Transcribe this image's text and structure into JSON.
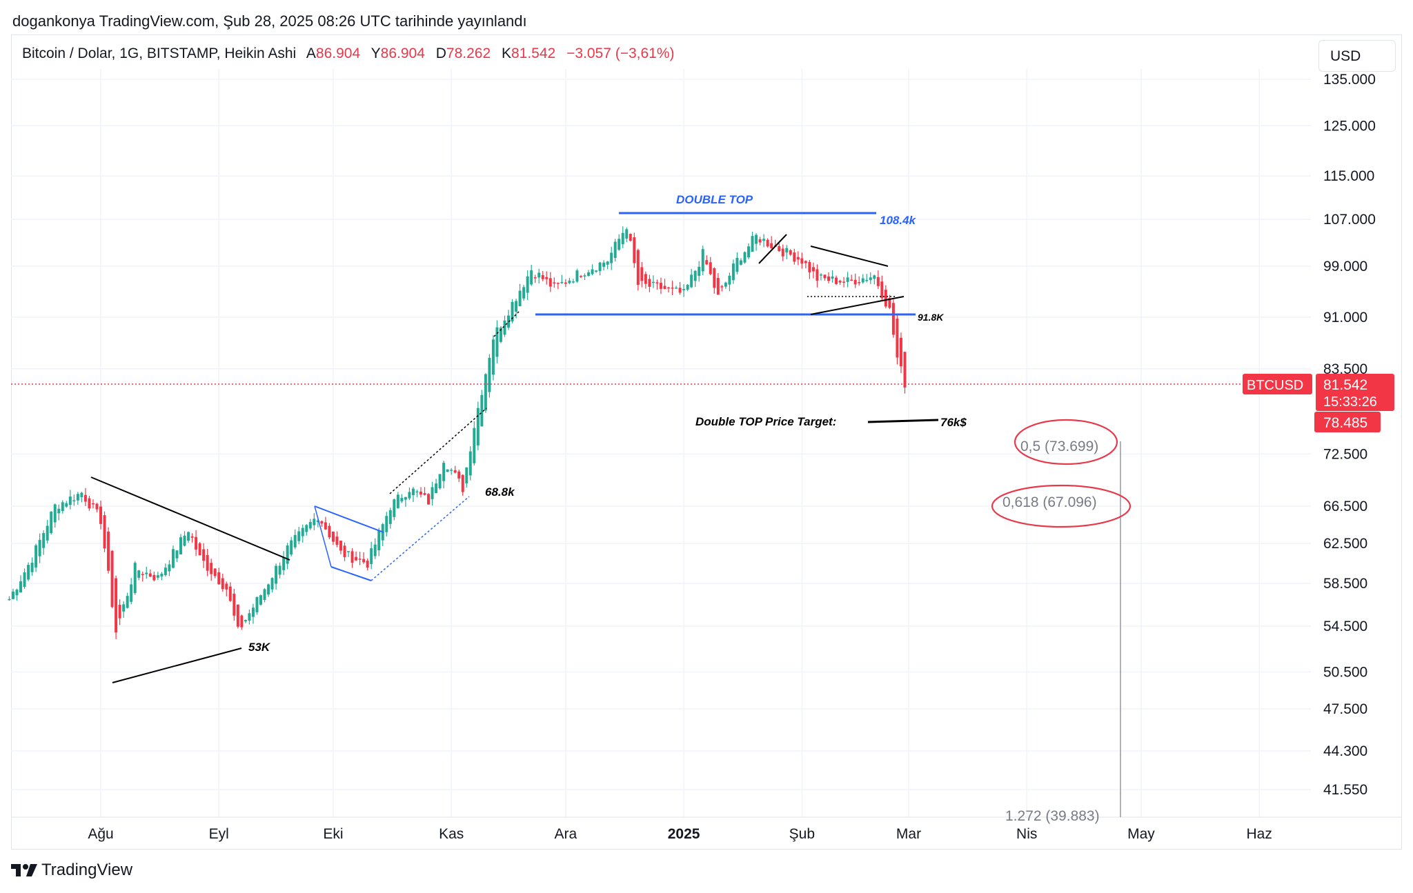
{
  "header": {
    "publish_line": "dogankonya TradingView.com, Şub 28, 2025 08:26 UTC tarihinde yayınlandı"
  },
  "legend": {
    "symbol": "Bitcoin / Dolar, 1G, BITSTAMP, Heikin Ashi",
    "open_label": "A",
    "open_value": "86.904",
    "high_label": "Y",
    "high_value": "86.904",
    "low_label": "D",
    "low_value": "78.262",
    "close_label": "K",
    "close_value": "81.542",
    "change": "−3.057 (−3,61%)"
  },
  "currency_button": "USD",
  "price_badge": {
    "symbol": "BTCUSD",
    "price": "81.542",
    "countdown": "15:33:26",
    "low_price": "78.485"
  },
  "footer": {
    "brand": "TradingView",
    "logo_icon": "tradingview-logo-icon"
  },
  "colors": {
    "up": "#22ab94",
    "down": "#f23645",
    "blue_line": "#2962ff",
    "badge": "#f23645"
  },
  "chart_data": {
    "type": "candlestick",
    "subtype": "Heikin Ashi",
    "y_scale": "log",
    "ylim": [
      39500,
      140000
    ],
    "y_ticks": [
      "135.000",
      "125.000",
      "115.000",
      "107.000",
      "99.000",
      "91.000",
      "83.500",
      "72.500",
      "66.500",
      "62.500",
      "58.500",
      "54.500",
      "50.500",
      "47.500",
      "44.300",
      "41.550"
    ],
    "y_tick_values": [
      135000,
      125000,
      115000,
      107000,
      99000,
      91000,
      83500,
      72500,
      66500,
      62500,
      58500,
      54500,
      50500,
      47500,
      44300,
      41550
    ],
    "x_ticks": [
      "Ağu",
      "Eyl",
      "Eki",
      "Kas",
      "Ara",
      "2025",
      "Şub",
      "Mar",
      "Nis",
      "May",
      "Haz"
    ],
    "x_tick_dates": [
      "2024-08-01",
      "2024-09-01",
      "2024-10-01",
      "2024-11-01",
      "2024-12-01",
      "2025-01-01",
      "2025-02-01",
      "2025-03-01",
      "2025-04-01",
      "2025-05-01",
      "2025-06-01"
    ],
    "x_range": [
      "2024-07-08",
      "2025-06-30"
    ],
    "last_price": 81542,
    "approx_daily_close": [
      [
        "2024-07-08",
        57000
      ],
      [
        "2024-07-14",
        61000
      ],
      [
        "2024-07-20",
        66500
      ],
      [
        "2024-07-27",
        68000
      ],
      [
        "2024-08-01",
        65000
      ],
      [
        "2024-08-05",
        54000
      ],
      [
        "2024-08-10",
        60000
      ],
      [
        "2024-08-16",
        59000
      ],
      [
        "2024-08-24",
        64000
      ],
      [
        "2024-08-27",
        61000
      ],
      [
        "2024-09-03",
        58000
      ],
      [
        "2024-09-06",
        54000
      ],
      [
        "2024-09-13",
        58000
      ],
      [
        "2024-09-19",
        62000
      ],
      [
        "2024-09-27",
        65500
      ],
      [
        "2024-10-03",
        61500
      ],
      [
        "2024-10-10",
        60500
      ],
      [
        "2024-10-16",
        66500
      ],
      [
        "2024-10-21",
        68500
      ],
      [
        "2024-10-26",
        67000
      ],
      [
        "2024-10-30",
        72000
      ],
      [
        "2024-11-04",
        68500
      ],
      [
        "2024-11-07",
        76000
      ],
      [
        "2024-11-12",
        88000
      ],
      [
        "2024-11-22",
        98500
      ],
      [
        "2024-11-28",
        95500
      ],
      [
        "2024-12-05",
        98000
      ],
      [
        "2024-12-12",
        100000
      ],
      [
        "2024-12-17",
        106000
      ],
      [
        "2024-12-20",
        96000
      ],
      [
        "2024-12-26",
        95500
      ],
      [
        "2025-01-01",
        94500
      ],
      [
        "2025-01-06",
        101000
      ],
      [
        "2025-01-10",
        94000
      ],
      [
        "2025-01-15",
        100000
      ],
      [
        "2025-01-20",
        104000
      ],
      [
        "2025-01-27",
        101500
      ],
      [
        "2025-02-01",
        100000
      ],
      [
        "2025-02-05",
        97000
      ],
      [
        "2025-02-13",
        96500
      ],
      [
        "2025-02-20",
        97500
      ],
      [
        "2025-02-24",
        92000
      ],
      [
        "2025-02-26",
        85000
      ],
      [
        "2025-02-28",
        81542
      ]
    ]
  },
  "annotations": {
    "double_top_title": "DOUBLE TOP",
    "top_level": "108.4k",
    "neckline_level": "91.8K",
    "target_text": "Double TOP Price Target:",
    "target_value": "76k$",
    "fib_05": "0,5 (73.699)",
    "fib_0618": "0,618 (67.096)",
    "fib_1272": "1.272 (39.883)",
    "label_68": "68.8k",
    "label_53": "53K"
  }
}
